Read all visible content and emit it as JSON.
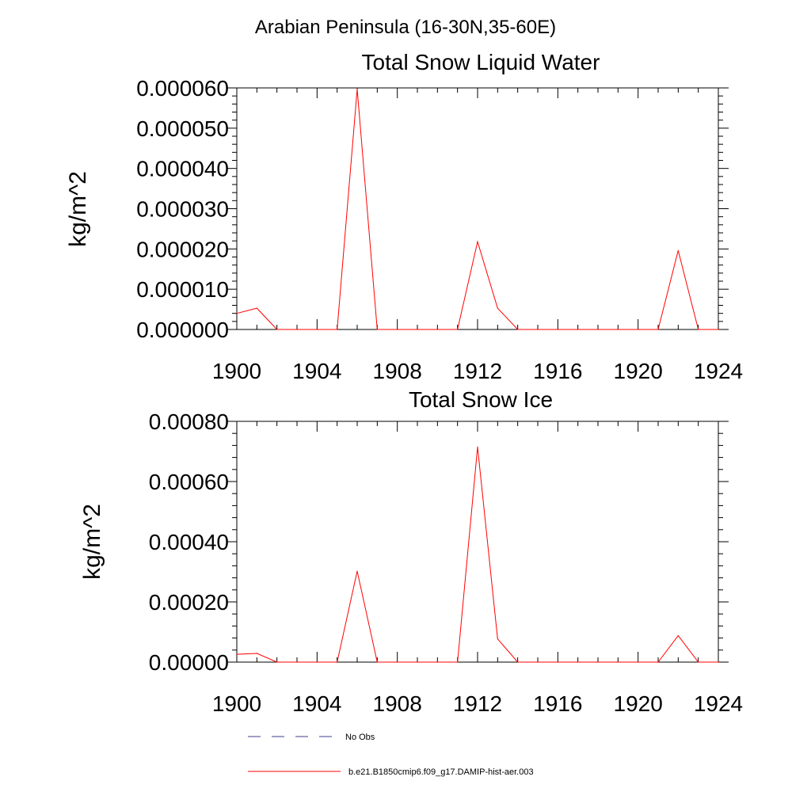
{
  "figure": {
    "suptitle": "Arabian Peninsula (16-30N,35-60E)",
    "line_color": "#ff0000",
    "obs_line_color": "#3c3c8c"
  },
  "chart_data": [
    {
      "type": "line",
      "title": "Total Snow Liquid Water",
      "xlabel": "",
      "ylabel": "kg/m^2",
      "xlim": [
        1900,
        1924
      ],
      "ylim": [
        0,
        6e-05
      ],
      "xticks": [
        "1900",
        "1904",
        "1908",
        "1912",
        "1916",
        "1920",
        "1924"
      ],
      "yticks": [
        "0.000000",
        "0.000010",
        "0.000020",
        "0.000030",
        "0.000040",
        "0.000050",
        "0.000060"
      ],
      "x": [
        1900,
        1901,
        1902,
        1903,
        1904,
        1905,
        1906,
        1907,
        1908,
        1909,
        1910,
        1911,
        1912,
        1913,
        1914,
        1915,
        1916,
        1917,
        1918,
        1919,
        1920,
        1921,
        1922,
        1923,
        1924
      ],
      "series": [
        {
          "name": "b.e21.B1850cmip6.f09_g17.DAMIP-hist-aer.003",
          "values": [
            4e-06,
            5.3e-06,
            0,
            0,
            0,
            0,
            5.97e-05,
            0,
            0,
            0,
            0,
            0,
            2.18e-05,
            5.3e-06,
            0,
            0,
            0,
            0,
            0,
            0,
            0,
            0,
            1.96e-05,
            0,
            0
          ]
        }
      ]
    },
    {
      "type": "line",
      "title": "Total Snow Ice",
      "xlabel": "",
      "ylabel": "kg/m^2",
      "xlim": [
        1900,
        1924
      ],
      "ylim": [
        0,
        0.0008
      ],
      "xticks": [
        "1900",
        "1904",
        "1908",
        "1912",
        "1916",
        "1920",
        "1924"
      ],
      "yticks": [
        "0.00000",
        "0.00020",
        "0.00040",
        "0.00060",
        "0.00080"
      ],
      "x": [
        1900,
        1901,
        1902,
        1903,
        1904,
        1905,
        1906,
        1907,
        1908,
        1909,
        1910,
        1911,
        1912,
        1913,
        1914,
        1915,
        1916,
        1917,
        1918,
        1919,
        1920,
        1921,
        1922,
        1923,
        1924
      ],
      "series": [
        {
          "name": "b.e21.B1850cmip6.f09_g17.DAMIP-hist-aer.003",
          "values": [
            2.6e-05,
            2.9e-05,
            0,
            0,
            0,
            0,
            0.000302,
            0,
            0,
            0,
            0,
            0,
            0.000715,
            7.7e-05,
            0,
            0,
            0,
            0,
            0,
            0,
            0,
            0,
            8.8e-05,
            0,
            0
          ]
        }
      ]
    }
  ],
  "legend": [
    {
      "label": "No Obs",
      "style": "dashed"
    },
    {
      "label": "b.e21.B1850cmip6.f09_g17.DAMIP-hist-aer.003",
      "style": "solid"
    }
  ]
}
